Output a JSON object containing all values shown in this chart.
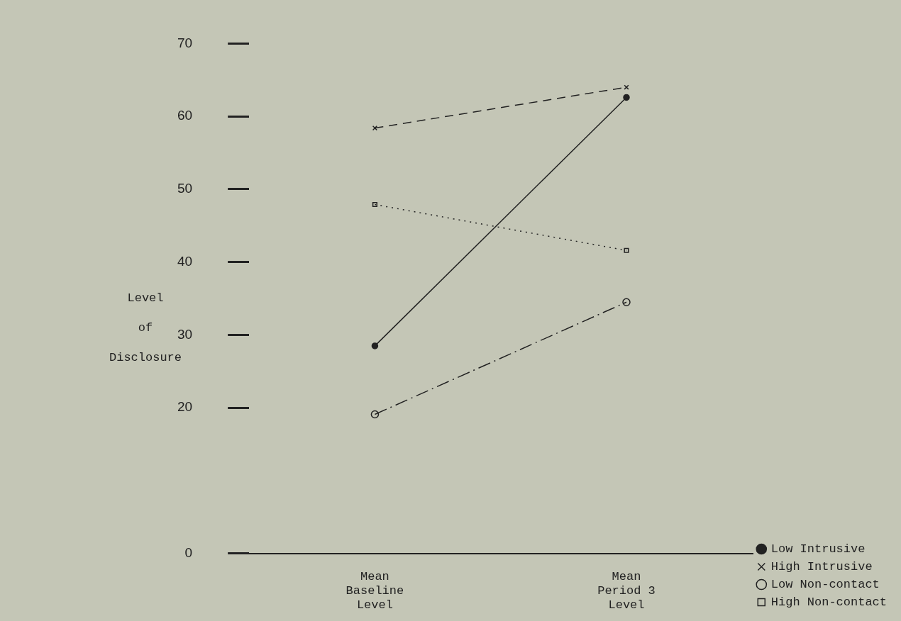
{
  "chart_data": {
    "type": "line",
    "ylabel": "Level of Disclosure",
    "categories": [
      "Mean\nBaseline\nLevel",
      "Mean\nPeriod 3\nLevel"
    ],
    "series": [
      {
        "name": "Low Intrusive",
        "color": "#222222",
        "values": [
          28.5,
          62.6
        ],
        "line_style": "solid",
        "marker": "circle"
      },
      {
        "name": "High Intrusive",
        "color": "#222222",
        "values": [
          58.4,
          64.0
        ],
        "line_style": "dashed",
        "marker": "cross"
      },
      {
        "name": "Low Non-contact",
        "color": "#222222",
        "values": [
          19.1,
          34.5
        ],
        "line_style": "dashdot",
        "marker": "circle"
      },
      {
        "name": "High Non-contact",
        "color": "#222222",
        "values": [
          47.9,
          41.6
        ],
        "line_style": "dotted",
        "marker": "square"
      }
    ],
    "ylim": [
      0,
      70
    ],
    "yticks": [
      0,
      20,
      30,
      40,
      50,
      60,
      70
    ],
    "grid": false,
    "legend": "bottom right"
  }
}
